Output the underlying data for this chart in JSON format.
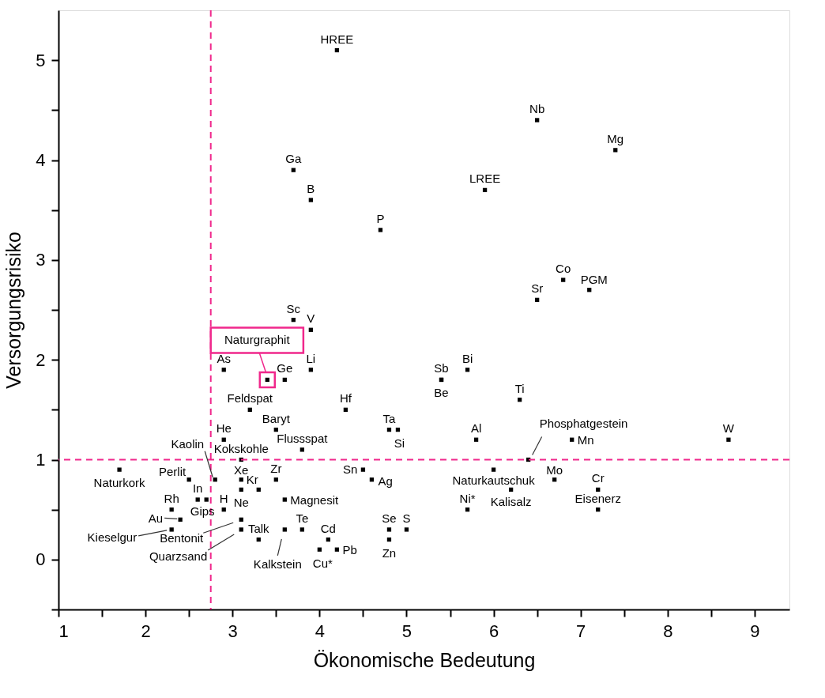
{
  "chart_data": {
    "type": "scatter",
    "xlabel": "Ökonomische Bedeutung",
    "ylabel": "Versorgungsrisiko",
    "xlim": [
      1,
      9.4
    ],
    "ylim": [
      -0.5,
      5.5
    ],
    "xticks": [
      1,
      {
        "value": 1.5,
        "label": null
      },
      2,
      {
        "value": 2.5,
        "label": null
      },
      3,
      {
        "value": 3.5,
        "label": null
      },
      4,
      {
        "value": 4.5,
        "label": null
      },
      5,
      {
        "value": 5.5,
        "label": null
      },
      6,
      {
        "value": 6.5,
        "label": null
      },
      7,
      {
        "value": 7.5,
        "label": null
      },
      8,
      {
        "value": 8.5,
        "label": null
      },
      9
    ],
    "yticks": [
      {
        "value": -0.5,
        "label": null
      },
      0,
      {
        "value": 0.5,
        "label": null
      },
      1,
      {
        "value": 1.5,
        "label": null
      },
      2,
      {
        "value": 2.5,
        "label": null
      },
      3,
      {
        "value": 3.5,
        "label": null
      },
      4,
      {
        "value": 4.5,
        "label": null
      },
      5
    ],
    "grid": false,
    "marker": "square",
    "ref_lines": [
      {
        "axis": "x",
        "value": 2.75,
        "color": "#f0288c",
        "line_style": "dashed"
      },
      {
        "axis": "y",
        "value": 1,
        "color": "#f0288c",
        "line_style": "dashed"
      }
    ],
    "annotations": [
      {
        "text": "Naturgraphit",
        "x": 3.4,
        "y": 1.8
      }
    ],
    "series": [
      {
        "color": "#000000",
        "x": [
          4.2,
          6.5,
          7.4,
          3.7,
          3.9,
          5.9,
          4.7,
          6.8,
          7.1,
          6.5,
          3.7,
          3.9,
          3.9,
          2.9,
          3.4,
          3.6,
          5.4,
          5.4,
          5.7,
          6.3,
          3.2,
          4.3,
          3.5,
          4.8,
          4.9,
          5.8,
          6.9,
          8.7,
          2.9,
          3.8,
          3.1,
          6.4,
          1.7,
          4.5,
          6.0,
          2.5,
          2.8,
          3.1,
          3.5,
          4.6,
          6.7,
          3.3,
          3.1,
          6.2,
          7.2,
          2.6,
          2.7,
          3.6,
          2.9,
          2.3,
          5.7,
          7.2,
          2.4,
          3.1,
          2.3,
          3.1,
          3.3,
          3.6,
          3.8,
          4.1,
          4.0,
          4.2,
          4.8,
          5.0,
          4.8
        ],
        "values": [
          5.1,
          4.4,
          4.1,
          3.9,
          3.6,
          3.7,
          3.3,
          2.8,
          2.7,
          2.6,
          2.4,
          2.3,
          1.9,
          1.9,
          1.8,
          1.8,
          1.8,
          1.8,
          1.9,
          1.6,
          1.5,
          1.5,
          1.3,
          1.3,
          1.3,
          1.2,
          1.2,
          1.2,
          1.2,
          1.1,
          1.0,
          1.0,
          0.9,
          0.9,
          0.9,
          0.8,
          0.8,
          0.8,
          0.8,
          0.8,
          0.8,
          0.7,
          0.7,
          0.7,
          0.7,
          0.6,
          0.6,
          0.6,
          0.5,
          0.5,
          0.5,
          0.5,
          0.4,
          0.4,
          0.3,
          0.3,
          0.2,
          0.3,
          0.3,
          0.2,
          0.1,
          0.1,
          0.3,
          0.3,
          0.2
        ],
        "value_labels": [
          "HREE",
          "Nb",
          "Mg",
          "Ga",
          "B",
          "LREE",
          "P",
          "Co",
          "PGM",
          "Sr",
          "Sc",
          "V",
          "Li",
          "As",
          null,
          "Ge",
          "Sb",
          "Be",
          "Bi",
          "Ti",
          "Feldspat",
          "Hf",
          "Baryt",
          "Ta",
          "Si",
          "Al",
          "Mn",
          "W",
          "He",
          "Flussspat",
          "Kokskohle",
          "Phosphatgestein",
          "Naturkork",
          "Sn",
          "Naturkautschuk",
          "Perlit",
          "Kaolin",
          "Xe",
          "Zr",
          "Ag",
          "Mo",
          "Kr",
          "Ne",
          "Kalisalz",
          "Cr",
          "In",
          "Gips",
          "Magnesit",
          "H",
          "Rh",
          "Ni*",
          "Eisenerz",
          "Au",
          "Bentonit",
          "Kieselgur",
          "Quarzsand",
          "Talk",
          "Kalkstein",
          "Te",
          "Cd",
          "Cu*",
          "Pb",
          "Se",
          "S",
          "Zn"
        ]
      }
    ]
  }
}
